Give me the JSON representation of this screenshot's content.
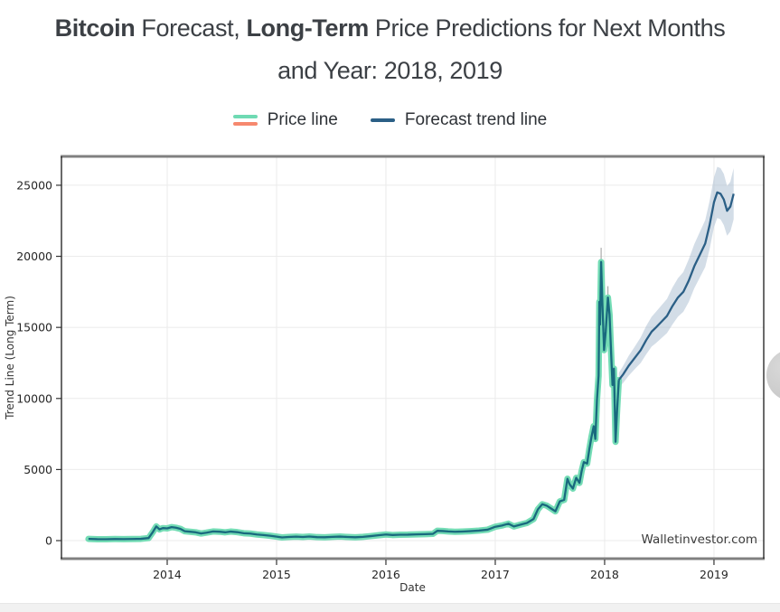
{
  "title": {
    "seg1_bold": "Bitcoin",
    "seg2": " Forecast, ",
    "seg3_bold": "Long-Term",
    "seg4": " Price Predictions for Next Months",
    "line2": "and Year: 2018, 2019"
  },
  "edge_button": {
    "name": "scroll-next-button"
  },
  "chart_data": {
    "type": "line",
    "title": "",
    "xlabel": "Date",
    "ylabel": "Trend Line (Long Term)",
    "watermark": "Walletinvestor.com",
    "xlim": [
      2013.033,
      2019.455
    ],
    "ylim": [
      -1270,
      27030
    ],
    "x_ticks": [
      2014,
      2015,
      2016,
      2017,
      2018,
      2019
    ],
    "y_ticks": [
      0,
      5000,
      10000,
      15000,
      20000,
      25000
    ],
    "grid": true,
    "legend_position": "top-center",
    "colors": {
      "grid": "#ebebeb",
      "spine_thick": "#808080",
      "spine_thin": "#1a1a1a",
      "tick_text": "#262626",
      "axis_label": "#333333",
      "watermark_text": "#3c3c3c",
      "whisker": "#a9a9a9"
    },
    "series": [
      {
        "name": "Price line",
        "legend_swatch_colors": [
          "#6fdab3",
          "#f6886e"
        ],
        "line_color": "#19697e",
        "halo_color": "#74dcb5",
        "points": [
          [
            2013.28,
            120
          ],
          [
            2013.36,
            100
          ],
          [
            2013.44,
            95
          ],
          [
            2013.52,
            110
          ],
          [
            2013.6,
            105
          ],
          [
            2013.68,
            115
          ],
          [
            2013.76,
            125
          ],
          [
            2013.83,
            180
          ],
          [
            2013.87,
            620
          ],
          [
            2013.9,
            1000
          ],
          [
            2013.93,
            790
          ],
          [
            2013.96,
            880
          ],
          [
            2014.0,
            860
          ],
          [
            2014.04,
            950
          ],
          [
            2014.08,
            905
          ],
          [
            2014.12,
            830
          ],
          [
            2014.16,
            660
          ],
          [
            2014.21,
            625
          ],
          [
            2014.26,
            585
          ],
          [
            2014.31,
            500
          ],
          [
            2014.36,
            560
          ],
          [
            2014.42,
            645
          ],
          [
            2014.48,
            625
          ],
          [
            2014.53,
            585
          ],
          [
            2014.58,
            635
          ],
          [
            2014.64,
            595
          ],
          [
            2014.7,
            520
          ],
          [
            2014.76,
            495
          ],
          [
            2014.82,
            430
          ],
          [
            2014.88,
            390
          ],
          [
            2014.94,
            345
          ],
          [
            2015.0,
            280
          ],
          [
            2015.05,
            225
          ],
          [
            2015.11,
            255
          ],
          [
            2015.18,
            280
          ],
          [
            2015.24,
            255
          ],
          [
            2015.3,
            290
          ],
          [
            2015.37,
            245
          ],
          [
            2015.44,
            235
          ],
          [
            2015.51,
            265
          ],
          [
            2015.58,
            285
          ],
          [
            2015.65,
            255
          ],
          [
            2015.72,
            235
          ],
          [
            2015.79,
            265
          ],
          [
            2015.86,
            315
          ],
          [
            2015.93,
            375
          ],
          [
            2016.0,
            430
          ],
          [
            2016.06,
            395
          ],
          [
            2016.13,
            415
          ],
          [
            2016.2,
            420
          ],
          [
            2016.28,
            440
          ],
          [
            2016.36,
            455
          ],
          [
            2016.43,
            475
          ],
          [
            2016.47,
            690
          ],
          [
            2016.52,
            675
          ],
          [
            2016.57,
            645
          ],
          [
            2016.63,
            620
          ],
          [
            2016.7,
            640
          ],
          [
            2016.77,
            665
          ],
          [
            2016.85,
            705
          ],
          [
            2016.93,
            770
          ],
          [
            2017.0,
            975
          ],
          [
            2017.06,
            1060
          ],
          [
            2017.12,
            1190
          ],
          [
            2017.17,
            995
          ],
          [
            2017.23,
            1120
          ],
          [
            2017.29,
            1240
          ],
          [
            2017.35,
            1520
          ],
          [
            2017.39,
            2200
          ],
          [
            2017.43,
            2560
          ],
          [
            2017.47,
            2460
          ],
          [
            2017.51,
            2260
          ],
          [
            2017.55,
            2060
          ],
          [
            2017.59,
            2760
          ],
          [
            2017.63,
            2870
          ],
          [
            2017.66,
            4350
          ],
          [
            2017.68,
            3960
          ],
          [
            2017.71,
            3660
          ],
          [
            2017.74,
            4420
          ],
          [
            2017.77,
            4060
          ],
          [
            2017.79,
            4900
          ],
          [
            2017.81,
            5520
          ],
          [
            2017.84,
            5420
          ],
          [
            2017.86,
            6420
          ],
          [
            2017.88,
            7300
          ],
          [
            2017.9,
            8050
          ],
          [
            2017.915,
            7150
          ],
          [
            2017.93,
            9900
          ],
          [
            2017.945,
            11600
          ],
          [
            2017.952,
            16800
          ],
          [
            2017.958,
            15200
          ],
          [
            2017.968,
            19600
          ],
          [
            2017.98,
            16600
          ],
          [
            2017.995,
            13400
          ],
          [
            2018.01,
            14700
          ],
          [
            2018.03,
            17100
          ],
          [
            2018.045,
            15900
          ],
          [
            2018.06,
            13100
          ],
          [
            2018.072,
            10950
          ],
          [
            2018.085,
            12100
          ],
          [
            2018.1,
            6950
          ],
          [
            2018.115,
            9300
          ],
          [
            2018.13,
            11300
          ]
        ]
      },
      {
        "name": "Forecast trend line",
        "legend_swatch_colors": [
          "#2b5f86"
        ],
        "line_color": "#2b5f86",
        "band_color": "#9db4ca",
        "band_opacity": 0.45,
        "points": [
          [
            2018.13,
            11300
          ],
          [
            2018.17,
            11700
          ],
          [
            2018.22,
            12300
          ],
          [
            2018.28,
            12900
          ],
          [
            2018.33,
            13400
          ],
          [
            2018.38,
            14100
          ],
          [
            2018.43,
            14700
          ],
          [
            2018.47,
            15000
          ],
          [
            2018.52,
            15400
          ],
          [
            2018.57,
            15800
          ],
          [
            2018.62,
            16500
          ],
          [
            2018.67,
            17100
          ],
          [
            2018.72,
            17500
          ],
          [
            2018.77,
            18300
          ],
          [
            2018.82,
            19300
          ],
          [
            2018.87,
            20100
          ],
          [
            2018.92,
            20900
          ],
          [
            2018.96,
            22200
          ],
          [
            2019.0,
            23800
          ],
          [
            2019.03,
            24500
          ],
          [
            2019.06,
            24400
          ],
          [
            2019.09,
            24000
          ],
          [
            2019.12,
            23200
          ],
          [
            2019.15,
            23500
          ],
          [
            2019.18,
            24400
          ]
        ],
        "band_upper": [
          11800,
          12300,
          13000,
          13700,
          14300,
          15100,
          15750,
          16100,
          16550,
          17000,
          17800,
          18450,
          18900,
          19800,
          20850,
          21700,
          22550,
          23900,
          25550,
          26300,
          26200,
          25800,
          24950,
          25250,
          26200
        ],
        "band_lower": [
          10800,
          11100,
          11600,
          12100,
          12500,
          13100,
          13650,
          13900,
          14250,
          14600,
          15200,
          15750,
          16100,
          16800,
          17750,
          18500,
          19250,
          20500,
          22050,
          22700,
          22600,
          22200,
          21450,
          21750,
          22600
        ]
      }
    ],
    "annotations": {
      "whiskers": [
        {
          "x": 2017.968,
          "from": 19600,
          "to": 20600
        },
        {
          "x": 2018.03,
          "from": 17100,
          "to": 17900
        }
      ]
    }
  }
}
